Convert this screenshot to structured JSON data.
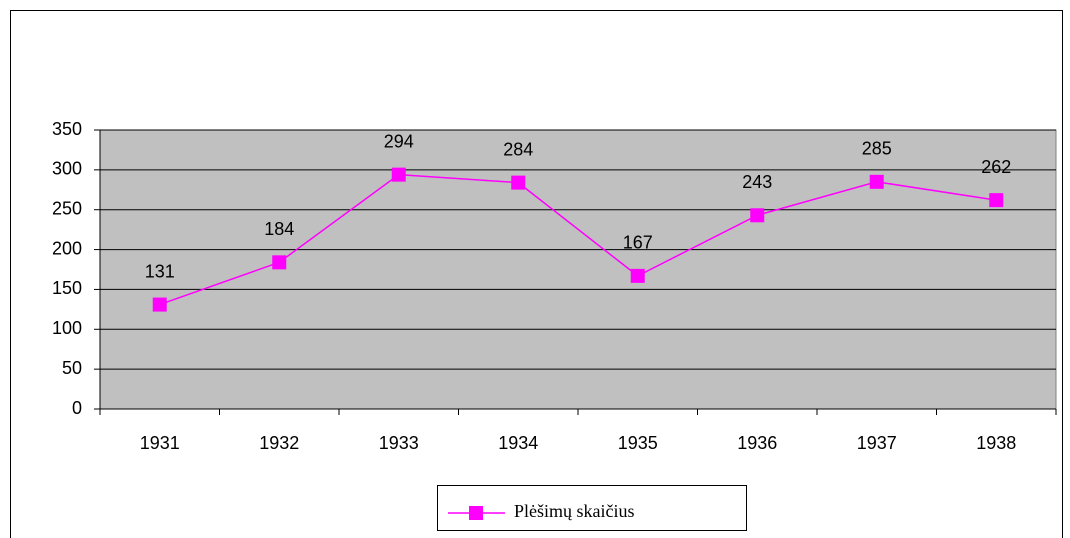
{
  "chart_data": {
    "type": "line",
    "categories": [
      "1931",
      "1932",
      "1933",
      "1934",
      "1935",
      "1936",
      "1937",
      "1938"
    ],
    "series": [
      {
        "name": "Plėšimų skaičius",
        "color": "#ff00ff",
        "values": [
          131,
          184,
          294,
          284,
          167,
          243,
          285,
          262
        ]
      }
    ],
    "ylim": [
      0,
      350
    ],
    "yticks": [
      0,
      50,
      100,
      150,
      200,
      250,
      300,
      350
    ],
    "grid": true,
    "legend": "bottom"
  }
}
